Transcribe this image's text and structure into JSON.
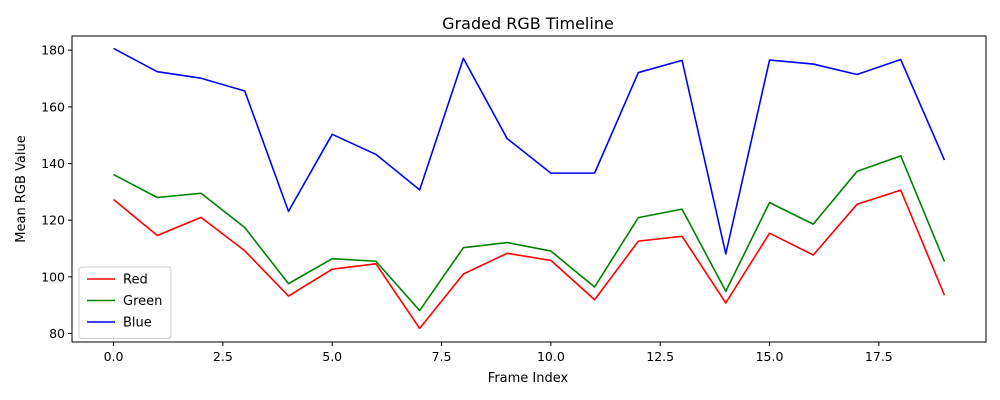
{
  "chart_data": {
    "type": "line",
    "title": "Graded RGB Timeline",
    "xlabel": "Frame Index",
    "ylabel": "Mean RGB Value",
    "xlim": [
      -0.95,
      19.95
    ],
    "ylim": [
      77,
      185
    ],
    "xticks": [
      0.0,
      2.5,
      5.0,
      7.5,
      10.0,
      12.5,
      15.0,
      17.5
    ],
    "xtick_labels": [
      "0.0",
      "2.5",
      "5.0",
      "7.5",
      "10.0",
      "12.5",
      "15.0",
      "17.5"
    ],
    "yticks": [
      80,
      100,
      120,
      140,
      160,
      180
    ],
    "ytick_labels": [
      "80",
      "100",
      "120",
      "140",
      "160",
      "180"
    ],
    "grid": false,
    "legend_position": "lower-left",
    "x": [
      0,
      1,
      2,
      3,
      4,
      5,
      6,
      7,
      8,
      9,
      10,
      11,
      12,
      13,
      14,
      15,
      16,
      17,
      18,
      19
    ],
    "series": [
      {
        "name": "Red",
        "color": "#ff0000",
        "values": [
          127.3,
          114.6,
          121.0,
          109.2,
          93.2,
          102.7,
          104.6,
          81.8,
          101.0,
          108.3,
          105.8,
          91.9,
          112.6,
          114.3,
          90.8,
          115.4,
          107.7,
          125.6,
          130.6,
          93.5
        ]
      },
      {
        "name": "Green",
        "color": "#008000",
        "values": [
          136.1,
          128.0,
          129.5,
          117.4,
          97.6,
          106.4,
          105.5,
          88.1,
          110.3,
          112.1,
          109.1,
          96.4,
          120.9,
          123.9,
          94.9,
          126.2,
          118.6,
          137.2,
          142.7,
          105.4
        ]
      },
      {
        "name": "Blue",
        "color": "#0000ff",
        "values": [
          180.6,
          172.4,
          170.1,
          165.6,
          123.1,
          150.3,
          143.2,
          130.7,
          177.1,
          148.8,
          136.6,
          136.6,
          172.1,
          176.4,
          108.1,
          176.5,
          175.1,
          171.4,
          176.7,
          141.2
        ]
      }
    ]
  }
}
